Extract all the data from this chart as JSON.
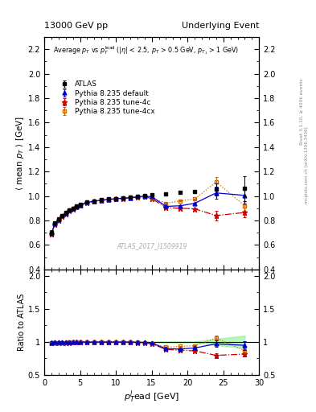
{
  "title_left": "13000 GeV pp",
  "title_right": "Underlying Event",
  "right_label1": "Rivet 3.1.10, ≥ 400k events",
  "right_label2": "mcplots.cern.ch [arXiv:1306.3436]",
  "watermark": "ATLAS_2017_I1509919",
  "main_ylabel": "$\\langle$ mean $p_T$ $\\rangle$ [GeV]",
  "ratio_ylabel": "Ratio to ATLAS",
  "xlabel": "$p_T^{l}$ead [GeV]",
  "annotation": "Average $p_T$ vs $p_T^{\\rm lead}$ ($|\\eta|$ < 2.5, $p_T$ > 0.5 GeV, $p_{T_1}$ > 1 GeV)",
  "ylim_main": [
    0.4,
    2.3
  ],
  "ylim_ratio": [
    0.5,
    2.1
  ],
  "xlim": [
    0,
    30
  ],
  "yticks_main": [
    0.4,
    0.6,
    0.8,
    1.0,
    1.2,
    1.4,
    1.6,
    1.8,
    2.0,
    2.2
  ],
  "yticks_ratio": [
    0.5,
    1.0,
    1.5,
    2.0
  ],
  "xticks": [
    0,
    5,
    10,
    15,
    20,
    25,
    30
  ],
  "atlas_x": [
    1.0,
    1.5,
    2.0,
    2.5,
    3.0,
    3.5,
    4.0,
    4.5,
    5.0,
    6.0,
    7.0,
    8.0,
    9.0,
    10.0,
    11.0,
    12.0,
    13.0,
    14.0,
    15.0,
    17.0,
    19.0,
    21.0,
    24.0,
    28.0
  ],
  "atlas_y": [
    0.7,
    0.78,
    0.81,
    0.84,
    0.865,
    0.885,
    0.9,
    0.915,
    0.93,
    0.95,
    0.96,
    0.97,
    0.975,
    0.98,
    0.985,
    0.99,
    0.998,
    1.005,
    1.01,
    1.02,
    1.03,
    1.035,
    1.055,
    1.06
  ],
  "atlas_yerr": [
    0.02,
    0.015,
    0.01,
    0.01,
    0.01,
    0.008,
    0.008,
    0.007,
    0.007,
    0.006,
    0.006,
    0.006,
    0.006,
    0.006,
    0.006,
    0.006,
    0.006,
    0.006,
    0.007,
    0.007,
    0.008,
    0.008,
    0.05,
    0.1
  ],
  "default_x": [
    1.0,
    1.5,
    2.0,
    2.5,
    3.0,
    3.5,
    4.0,
    4.5,
    5.0,
    6.0,
    7.0,
    8.0,
    9.0,
    10.0,
    11.0,
    12.0,
    13.0,
    14.0,
    15.0,
    17.0,
    19.0,
    21.0,
    24.0,
    28.0
  ],
  "default_y": [
    0.695,
    0.775,
    0.808,
    0.838,
    0.86,
    0.882,
    0.898,
    0.912,
    0.927,
    0.948,
    0.958,
    0.967,
    0.972,
    0.978,
    0.982,
    0.986,
    0.994,
    0.998,
    0.994,
    0.915,
    0.92,
    0.94,
    1.025,
    1.005
  ],
  "default_yerr": [
    0.01,
    0.008,
    0.007,
    0.007,
    0.006,
    0.006,
    0.005,
    0.005,
    0.005,
    0.004,
    0.004,
    0.004,
    0.004,
    0.004,
    0.004,
    0.004,
    0.004,
    0.004,
    0.004,
    0.004,
    0.005,
    0.005,
    0.05,
    0.07
  ],
  "tune4c_x": [
    1.0,
    1.5,
    2.0,
    2.5,
    3.0,
    3.5,
    4.0,
    4.5,
    5.0,
    6.0,
    7.0,
    8.0,
    9.0,
    10.0,
    11.0,
    12.0,
    13.0,
    14.0,
    15.0,
    17.0,
    19.0,
    21.0,
    24.0,
    28.0
  ],
  "tune4c_y": [
    0.69,
    0.77,
    0.8,
    0.832,
    0.855,
    0.878,
    0.895,
    0.91,
    0.925,
    0.945,
    0.955,
    0.965,
    0.97,
    0.976,
    0.98,
    0.986,
    0.99,
    0.994,
    0.98,
    0.905,
    0.9,
    0.895,
    0.84,
    0.865
  ],
  "tune4c_yerr": [
    0.01,
    0.008,
    0.007,
    0.007,
    0.006,
    0.006,
    0.005,
    0.005,
    0.005,
    0.004,
    0.004,
    0.004,
    0.004,
    0.004,
    0.004,
    0.004,
    0.004,
    0.004,
    0.004,
    0.004,
    0.005,
    0.005,
    0.04,
    0.04
  ],
  "tune4cx_x": [
    1.0,
    1.5,
    2.0,
    2.5,
    3.0,
    3.5,
    4.0,
    4.5,
    5.0,
    6.0,
    7.0,
    8.0,
    9.0,
    10.0,
    11.0,
    12.0,
    13.0,
    14.0,
    15.0,
    17.0,
    19.0,
    21.0,
    24.0,
    28.0
  ],
  "tune4cx_y": [
    0.692,
    0.772,
    0.802,
    0.834,
    0.857,
    0.88,
    0.897,
    0.912,
    0.927,
    0.947,
    0.957,
    0.967,
    0.972,
    0.978,
    0.982,
    0.988,
    0.992,
    0.996,
    0.984,
    0.94,
    0.96,
    0.975,
    1.115,
    0.92
  ],
  "tune4cx_yerr": [
    0.01,
    0.008,
    0.007,
    0.007,
    0.006,
    0.006,
    0.005,
    0.005,
    0.005,
    0.004,
    0.004,
    0.004,
    0.004,
    0.004,
    0.004,
    0.004,
    0.004,
    0.004,
    0.004,
    0.004,
    0.005,
    0.005,
    0.04,
    0.04
  ],
  "atlas_color": "black",
  "default_color": "#0000cc",
  "tune4c_color": "#cc0000",
  "tune4cx_color": "#cc6600",
  "ratio_band_color": "#90ee90",
  "ratio_band_alpha": 0.6
}
